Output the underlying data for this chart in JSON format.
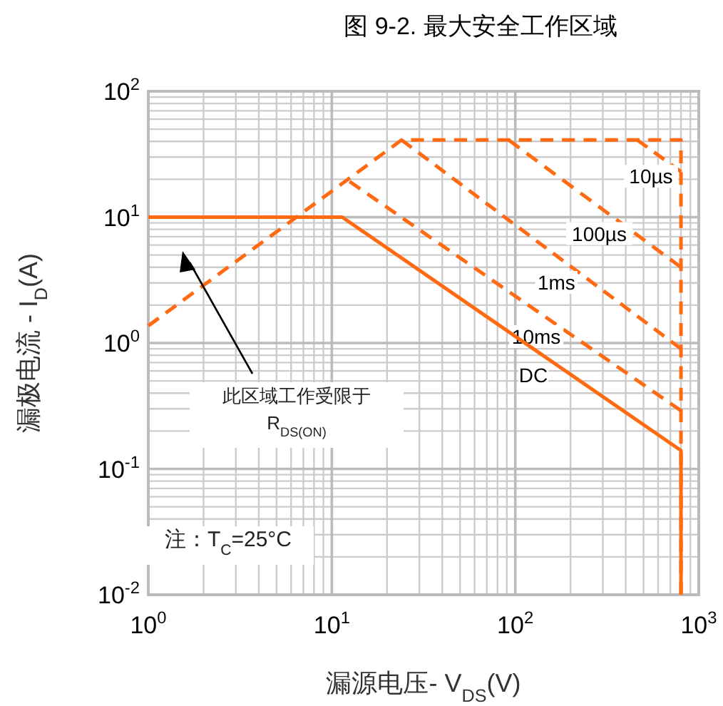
{
  "chart_data": {
    "type": "line",
    "title": "图 9-2. 最大安全工作区域",
    "xlabel": "漏源电压- V$_{DS}$(V)",
    "ylabel": "漏极电流 - I$_{D}$(A)",
    "log": "xy",
    "grid": true,
    "xlim": [
      1,
      1000
    ],
    "ylim": [
      0.01,
      100
    ],
    "xticks": [
      {
        "value": 1,
        "label": "10$^{0}$"
      },
      {
        "value": 10,
        "label": "10$^{1}$"
      },
      {
        "value": 100,
        "label": "10$^{2}$"
      },
      {
        "value": 1000,
        "label": "10$^{3}$"
      }
    ],
    "yticks": [
      {
        "value": 0.01,
        "label": "10$^{-2}$"
      },
      {
        "value": 0.1,
        "label": "10$^{-1}$"
      },
      {
        "value": 1,
        "label": "10$^{0}$"
      },
      {
        "value": 10,
        "label": "10$^{1}$"
      },
      {
        "value": 100,
        "label": "10$^{2}$"
      }
    ],
    "series": [
      {
        "color": "#ff6a13",
        "line_style": "dashed",
        "x": [
          1,
          24,
          800,
          800
        ],
        "values": [
          1.37,
          41,
          41,
          0.01
        ]
      },
      {
        "name": "10µs",
        "color": "#ff6a13",
        "line_style": "dashed",
        "x": [
          462,
          800
        ],
        "values": [
          41,
          23
        ]
      },
      {
        "name": "100µs",
        "color": "#ff6a13",
        "line_style": "dashed",
        "x": [
          92,
          800
        ],
        "values": [
          41,
          4
        ]
      },
      {
        "name": "1ms",
        "color": "#ff6a13",
        "line_style": "dashed",
        "x": [
          24,
          800
        ],
        "values": [
          41,
          0.9
        ]
      },
      {
        "name": "10ms",
        "color": "#ff6a13",
        "line_style": "dashed",
        "x": [
          12.5,
          800
        ],
        "values": [
          19.2,
          0.29
        ]
      },
      {
        "name": "DC",
        "color": "#ff6a13",
        "line_style": "solid",
        "x": [
          1,
          11.4,
          800,
          800
        ],
        "values": [
          10,
          10,
          0.14,
          0.01
        ]
      }
    ],
    "annotations": [
      "此区域工作受限于\nR$_{DS(ON)}$",
      "注：T$_{C}$=25°C"
    ]
  }
}
